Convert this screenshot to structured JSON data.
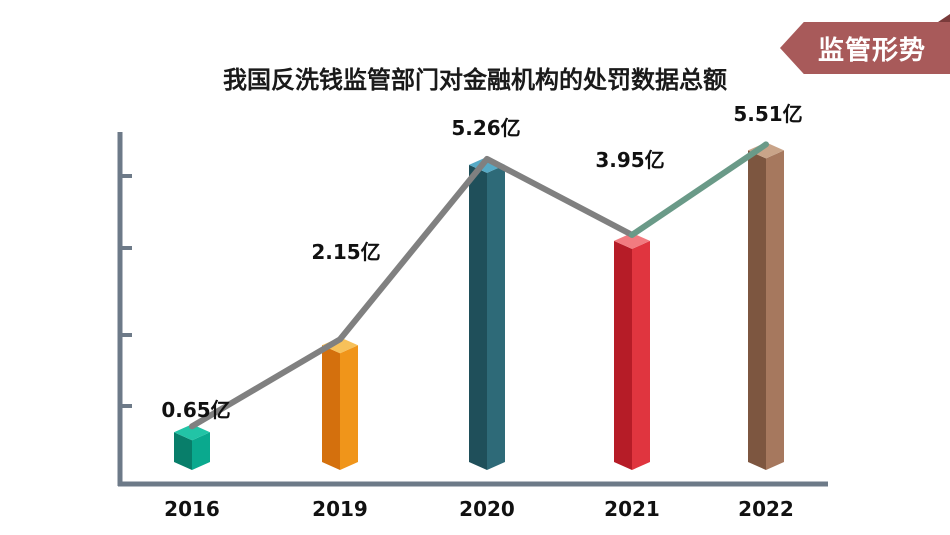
{
  "tag": {
    "label": "监管形势"
  },
  "chart_data": {
    "type": "bar",
    "title": "我国反洗钱监管部门对金融机构的处罚数据总额",
    "categories": [
      "2016",
      "2019",
      "2020",
      "2021",
      "2022"
    ],
    "values": [
      0.65,
      2.15,
      5.26,
      3.95,
      5.51
    ],
    "data_labels": [
      "0.65亿",
      "2.15亿",
      "5.26亿",
      "3.95亿",
      "5.51亿"
    ],
    "unit": "亿",
    "overlay_line": true,
    "ylim": [
      0,
      6
    ],
    "grid": false,
    "highlight_label_color": "#b22a3a",
    "colors": {
      "bars": [
        "#0aa98e",
        "#f0951a",
        "#2e6a78",
        "#e0353f",
        "#a6785e"
      ],
      "bar_tops": [
        "#22c4a6",
        "#f7c15a",
        "#56aac6",
        "#f27b80",
        "#c9a489"
      ],
      "bar_sides": [
        "#087e6a",
        "#d4700d",
        "#1f4f5a",
        "#b61c27",
        "#7d5640"
      ],
      "line": "#808080",
      "line_last_segment": "#6a9a88",
      "axis": "#6d7a88"
    }
  }
}
